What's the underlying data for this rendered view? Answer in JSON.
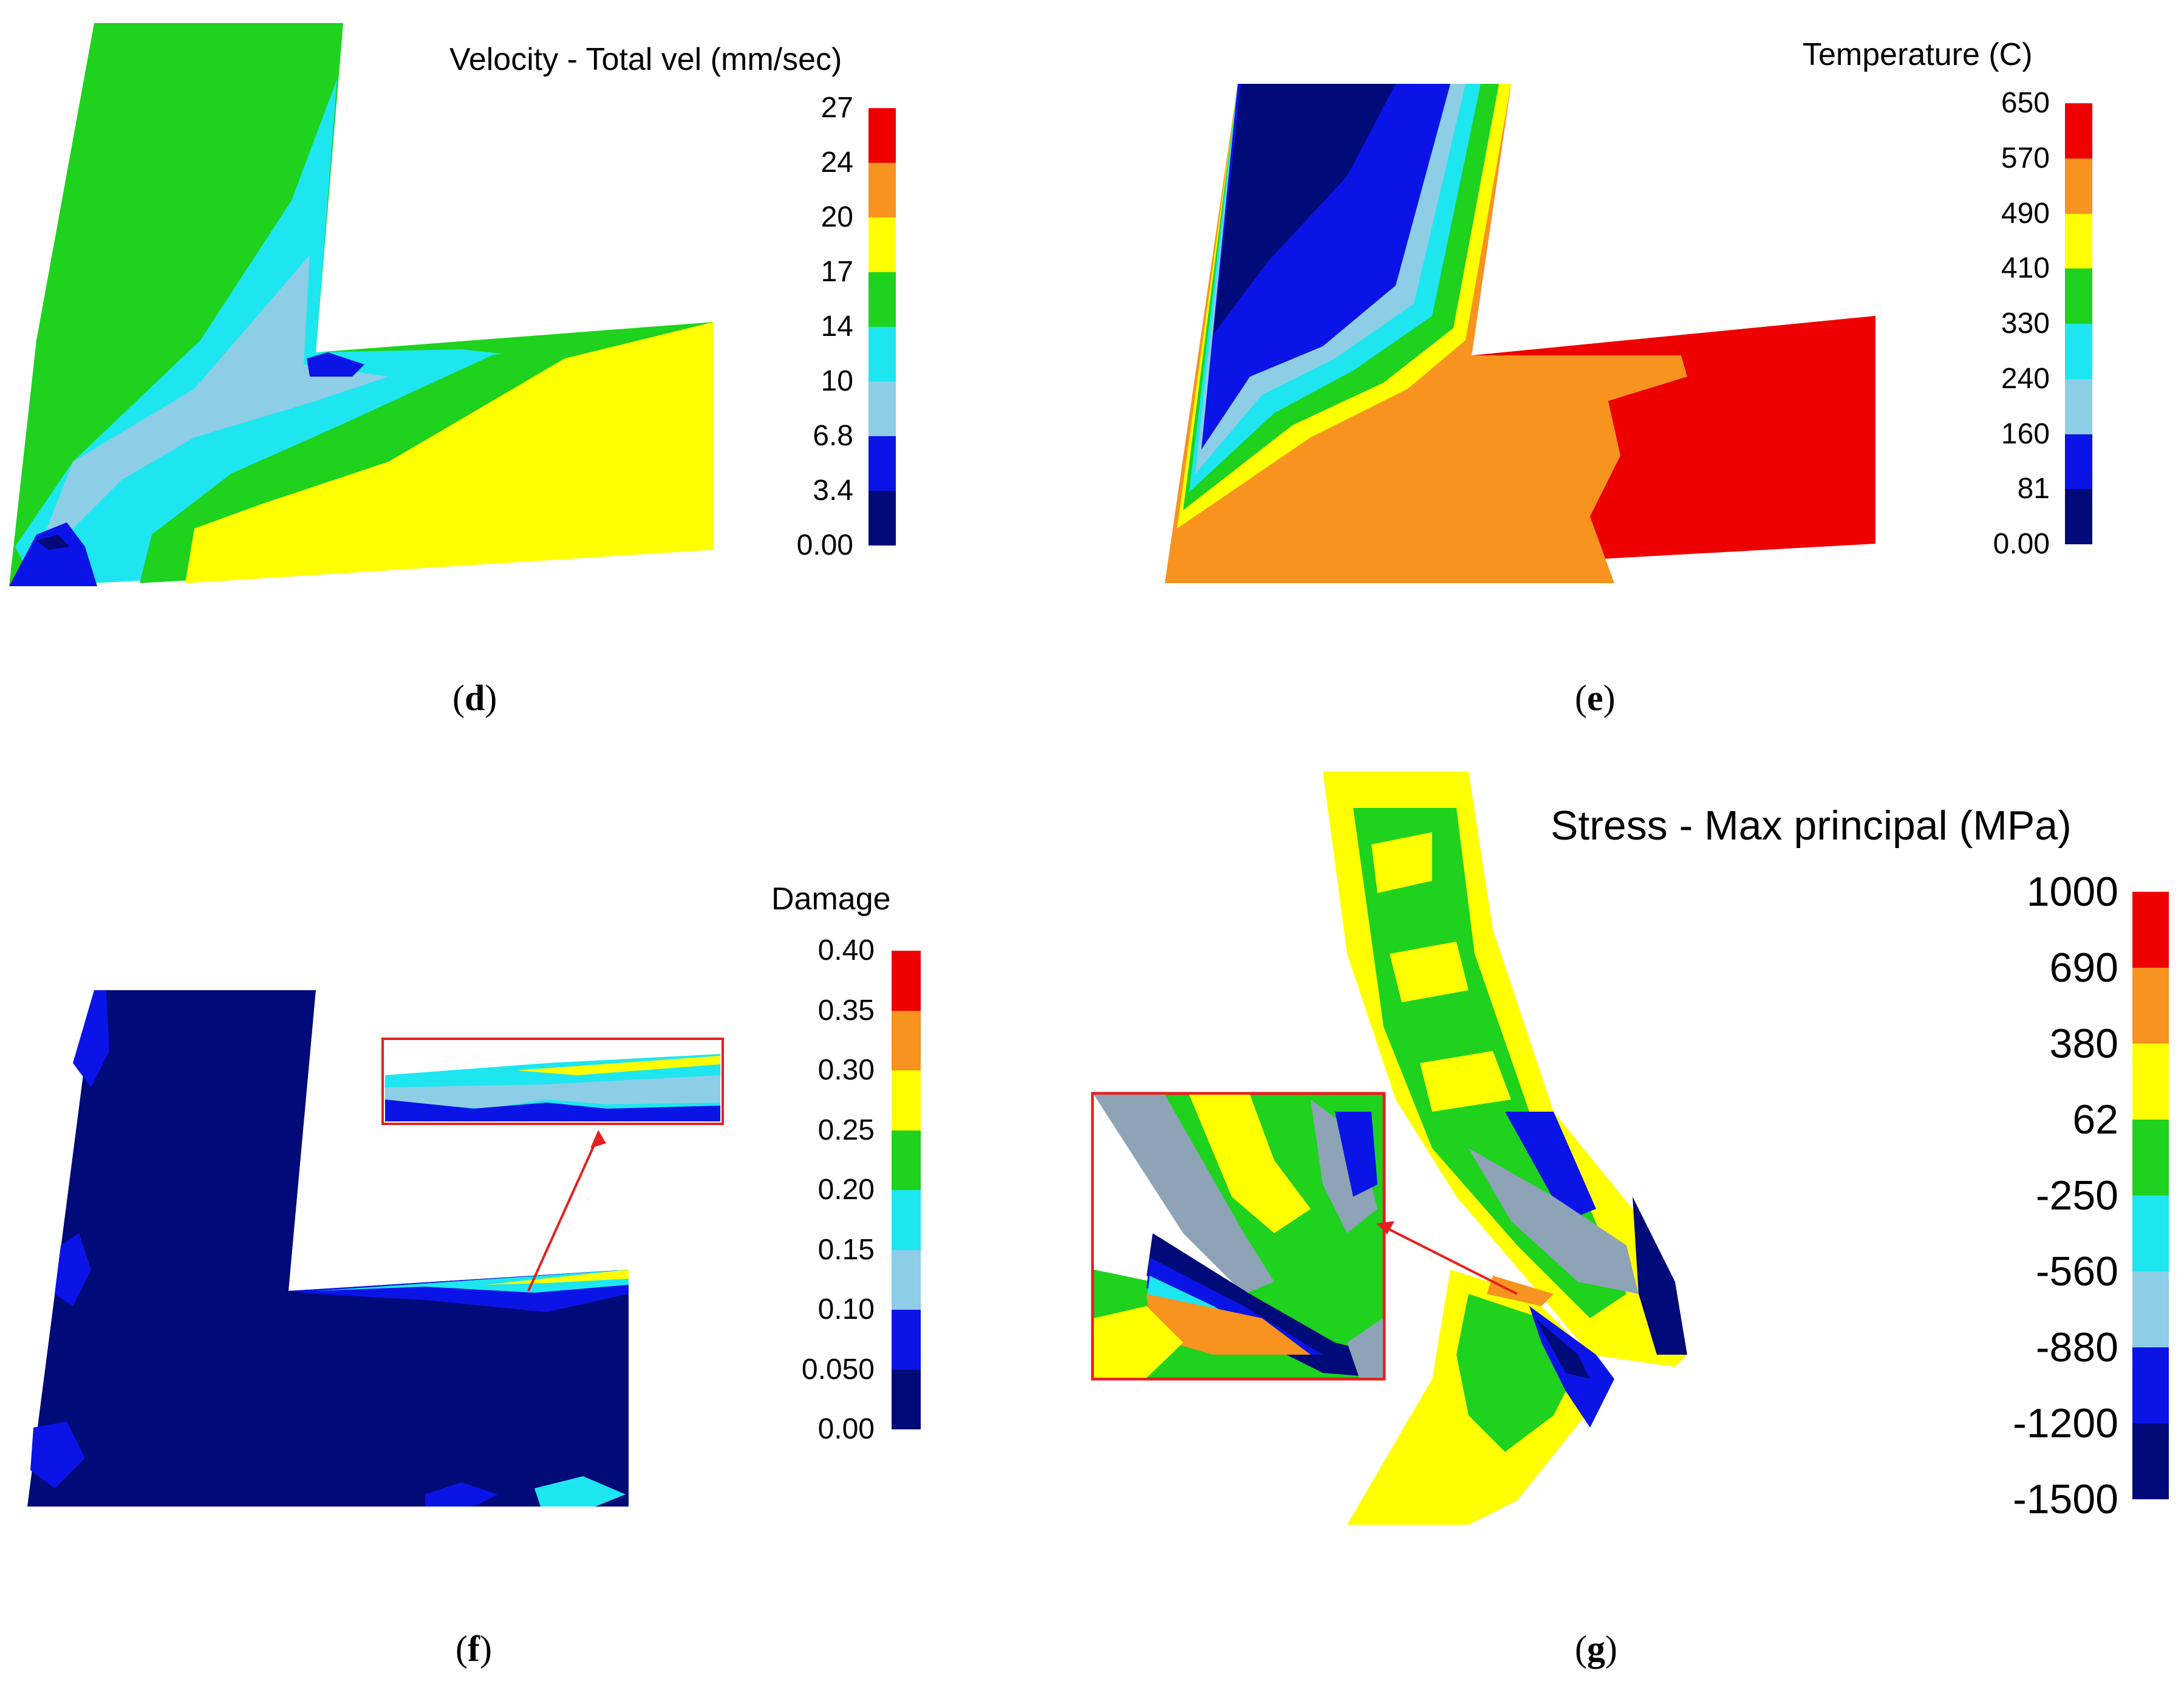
{
  "panels": {
    "d": {
      "caption_letter": "d",
      "legend_title": "Velocity - Total vel (mm/sec)",
      "ticks": [
        "27",
        "24",
        "20",
        "17",
        "14",
        "10",
        "6.8",
        "3.4",
        "0.00"
      ]
    },
    "e": {
      "caption_letter": "e",
      "legend_title": "Temperature (C)",
      "ticks": [
        "650",
        "570",
        "490",
        "410",
        "330",
        "240",
        "160",
        "81",
        "0.00"
      ]
    },
    "f": {
      "caption_letter": "f",
      "legend_title": "Damage",
      "ticks": [
        "0.40",
        "0.35",
        "0.30",
        "0.25",
        "0.20",
        "0.15",
        "0.10",
        "0.050",
        "0.00"
      ]
    },
    "g": {
      "caption_letter": "g",
      "legend_title": "Stress - Max principal (MPa)",
      "ticks": [
        "1000",
        "690",
        "380",
        "62",
        "-250",
        "-560",
        "-880",
        "-1200",
        "-1500"
      ]
    }
  },
  "colors": {
    "scale": [
      "#ee0000",
      "#f7931e",
      "#ffff00",
      "#1ed21e",
      "#1ee6f0",
      "#8ecde6",
      "#0a14e6",
      "#000a78"
    ],
    "outline_red": "#e62020",
    "steel_gray": "#8fa3b6"
  }
}
